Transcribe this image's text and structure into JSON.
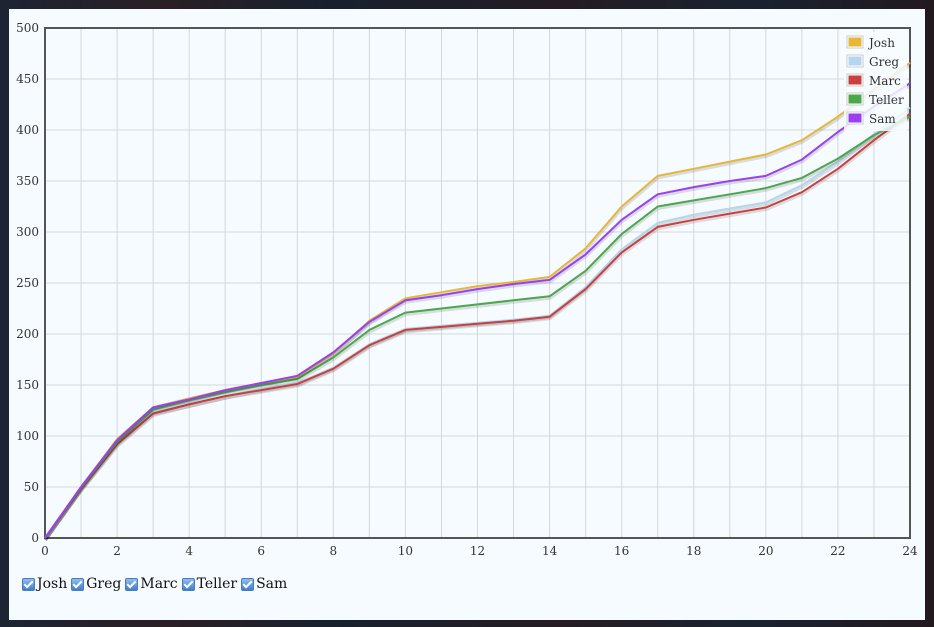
{
  "chart_data": {
    "type": "line",
    "title": "",
    "xlabel": "",
    "ylabel": "",
    "xlim": [
      0,
      24
    ],
    "ylim": [
      0,
      500
    ],
    "x_ticks": [
      "0",
      "2",
      "4",
      "6",
      "8",
      "10",
      "12",
      "14",
      "16",
      "18",
      "20",
      "22",
      "24"
    ],
    "y_ticks": [
      "0",
      "50",
      "100",
      "150",
      "200",
      "250",
      "300",
      "350",
      "400",
      "450",
      "500"
    ],
    "grid": true,
    "legend_position": "top-right",
    "x": [
      0,
      1,
      2,
      3,
      4,
      5,
      6,
      7,
      8,
      9,
      10,
      11,
      12,
      13,
      14,
      15,
      16,
      17,
      18,
      19,
      20,
      21,
      22,
      23,
      24
    ],
    "series": [
      {
        "name": "Josh",
        "color": "#e8b73a",
        "values": [
          0,
          50,
          97,
          128,
          137,
          145,
          152,
          158,
          181,
          213,
          235,
          241,
          247,
          251,
          256,
          284,
          325,
          355,
          362,
          369,
          376,
          390,
          413,
          440,
          466
        ]
      },
      {
        "name": "Greg",
        "color": "#b5d6f0",
        "values": [
          0,
          49,
          93,
          123,
          131,
          139,
          146,
          152,
          167,
          190,
          205,
          208,
          211,
          214,
          218,
          246,
          283,
          309,
          317,
          323,
          329,
          346,
          369,
          396,
          422
        ]
      },
      {
        "name": "Marc",
        "color": "#c9403f",
        "values": [
          0,
          48,
          92,
          122,
          131,
          139,
          145,
          151,
          166,
          189,
          204,
          207,
          210,
          213,
          217,
          244,
          280,
          305,
          312,
          318,
          324,
          339,
          362,
          390,
          416
        ]
      },
      {
        "name": "Teller",
        "color": "#4aa84a",
        "values": [
          0,
          49,
          94,
          126,
          135,
          143,
          150,
          156,
          177,
          204,
          221,
          225,
          229,
          233,
          237,
          262,
          298,
          325,
          331,
          337,
          343,
          353,
          372,
          395,
          413
        ]
      },
      {
        "name": "Sam",
        "color": "#9b3ff0",
        "values": [
          0,
          50,
          96,
          128,
          136,
          145,
          152,
          159,
          182,
          212,
          233,
          238,
          244,
          249,
          253,
          278,
          312,
          337,
          344,
          350,
          355,
          371,
          398,
          423,
          446
        ]
      }
    ]
  },
  "toggles": [
    {
      "label": "Josh",
      "checked": true
    },
    {
      "label": "Greg",
      "checked": true
    },
    {
      "label": "Marc",
      "checked": true
    },
    {
      "label": "Teller",
      "checked": true
    },
    {
      "label": "Sam",
      "checked": true
    }
  ]
}
